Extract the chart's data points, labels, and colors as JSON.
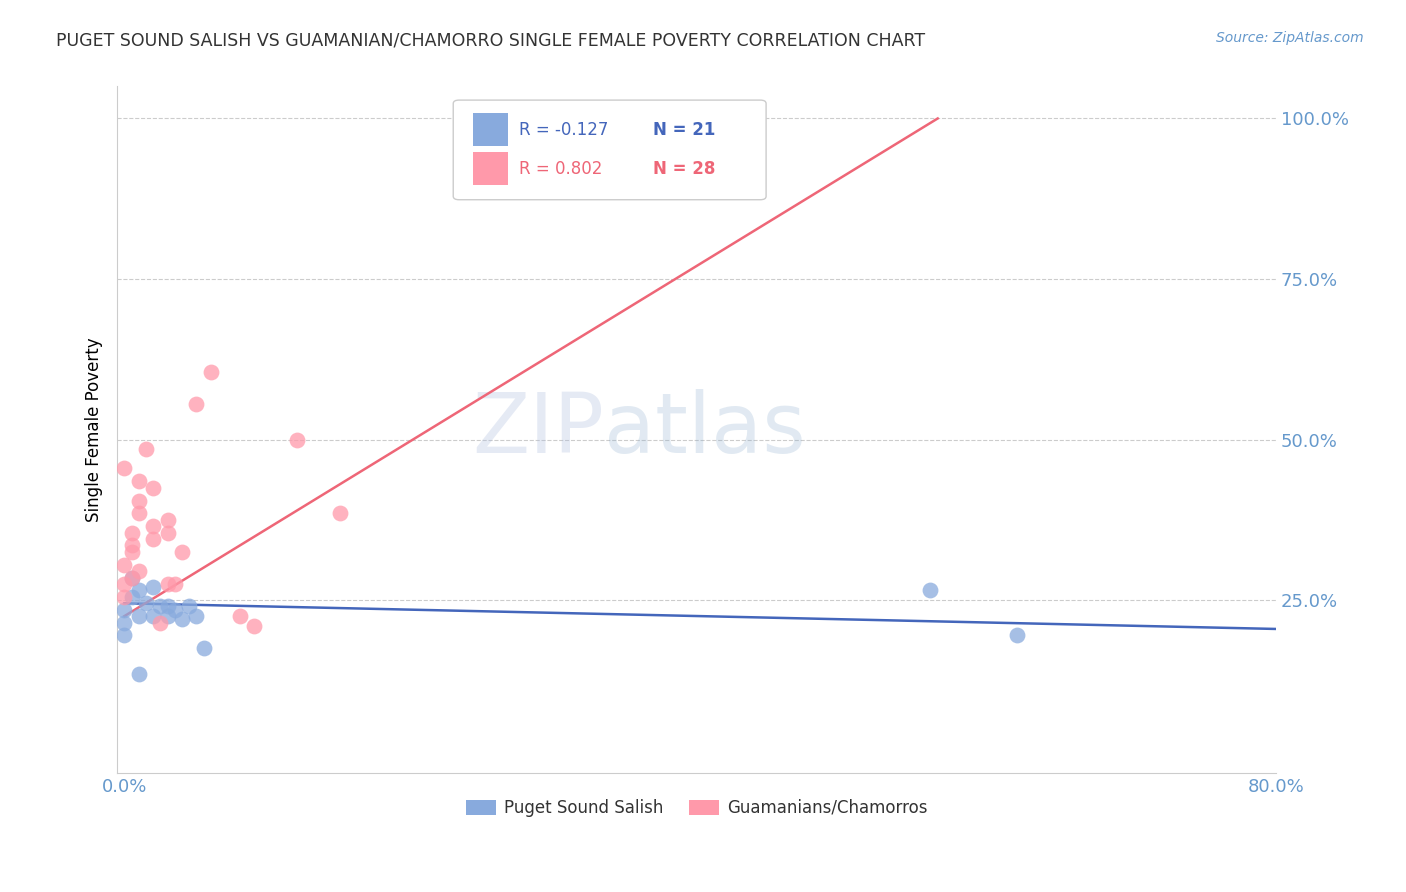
{
  "title": "PUGET SOUND SALISH VS GUAMANIAN/CHAMORRO SINGLE FEMALE POVERTY CORRELATION CHART",
  "source": "Source: ZipAtlas.com",
  "ylabel": "Single Female Poverty",
  "legend_label1": "Puget Sound Salish",
  "legend_label2": "Guamanians/Chamorros",
  "color_blue": "#88AADD",
  "color_pink": "#FF99AA",
  "color_blue_line": "#4466BB",
  "color_pink_line": "#EE6677",
  "color_axis_label": "#6699CC",
  "color_title": "#333333",
  "blue_points_x": [
    0.0,
    0.0,
    0.0,
    0.005,
    0.005,
    0.01,
    0.01,
    0.015,
    0.02,
    0.02,
    0.025,
    0.03,
    0.03,
    0.035,
    0.04,
    0.045,
    0.05,
    0.055,
    0.56,
    0.62,
    0.01
  ],
  "blue_points_y": [
    0.235,
    0.215,
    0.195,
    0.285,
    0.255,
    0.265,
    0.225,
    0.245,
    0.27,
    0.225,
    0.24,
    0.24,
    0.225,
    0.235,
    0.22,
    0.24,
    0.225,
    0.175,
    0.265,
    0.195,
    0.135
  ],
  "pink_points_x": [
    0.0,
    0.0,
    0.0,
    0.005,
    0.005,
    0.005,
    0.01,
    0.01,
    0.01,
    0.015,
    0.02,
    0.02,
    0.025,
    0.03,
    0.03,
    0.035,
    0.04,
    0.05,
    0.06,
    0.08,
    0.09,
    0.12,
    0.15,
    0.0,
    0.005,
    0.01,
    0.02,
    0.03
  ],
  "pink_points_y": [
    0.255,
    0.275,
    0.305,
    0.325,
    0.355,
    0.285,
    0.405,
    0.435,
    0.385,
    0.485,
    0.365,
    0.425,
    0.215,
    0.355,
    0.275,
    0.275,
    0.325,
    0.555,
    0.605,
    0.225,
    0.21,
    0.5,
    0.385,
    0.455,
    0.335,
    0.295,
    0.345,
    0.375
  ],
  "blue_trend_x": [
    0.0,
    0.8
  ],
  "blue_trend_y": [
    0.245,
    0.205
  ],
  "pink_trend_x": [
    0.0,
    0.565
  ],
  "pink_trend_y": [
    0.225,
    1.0
  ],
  "xlim": [
    -0.005,
    0.8
  ],
  "ylim": [
    -0.02,
    1.05
  ],
  "xticks": [
    0.0,
    0.2,
    0.4,
    0.6,
    0.8
  ],
  "xticklabels": [
    "0.0%",
    "",
    "",
    "",
    "80.0%"
  ],
  "yticks": [
    0.25,
    0.5,
    0.75,
    1.0
  ],
  "yticklabels": [
    "25.0%",
    "50.0%",
    "75.0%",
    "100.0%"
  ]
}
